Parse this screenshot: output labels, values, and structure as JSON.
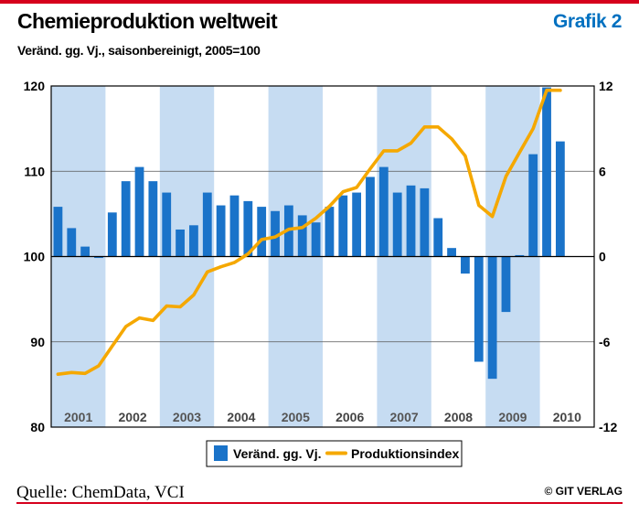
{
  "header": {
    "title": "Chemieproduktion weltweit",
    "subtitle": "Veränd. gg. Vj., saisonbereinigt, 2005=100",
    "grafik_label": "Grafik 2"
  },
  "footer": {
    "source": "Quelle: ChemData, VCI",
    "copyright": "© GIT VERLAG"
  },
  "colors": {
    "bar": "#1a73c9",
    "line": "#f5a800",
    "band": "#c6dcf2",
    "title_accent": "#0070c0",
    "border": "#d6001c"
  },
  "chart_data": {
    "type": "bar+line",
    "years": [
      "2001",
      "2002",
      "2003",
      "2004",
      "2005",
      "2006",
      "2007",
      "2008",
      "2009",
      "2010"
    ],
    "quarters": [
      "2001Q1",
      "2001Q2",
      "2001Q3",
      "2001Q4",
      "2002Q1",
      "2002Q2",
      "2002Q3",
      "2002Q4",
      "2003Q1",
      "2003Q2",
      "2003Q3",
      "2003Q4",
      "2004Q1",
      "2004Q2",
      "2004Q3",
      "2004Q4",
      "2005Q1",
      "2005Q2",
      "2005Q3",
      "2005Q4",
      "2006Q1",
      "2006Q2",
      "2006Q3",
      "2006Q4",
      "2007Q1",
      "2007Q2",
      "2007Q3",
      "2007Q4",
      "2008Q1",
      "2008Q2",
      "2008Q3",
      "2008Q4",
      "2009Q1",
      "2009Q2",
      "2009Q3",
      "2009Q4",
      "2010Q1",
      "2010Q2"
    ],
    "series": [
      {
        "name": "Veränd. gg. Vj.",
        "axis": "right",
        "kind": "bar",
        "values": [
          3.5,
          2.0,
          0.7,
          -0.1,
          3.1,
          5.3,
          6.3,
          5.3,
          4.5,
          1.9,
          2.2,
          4.5,
          3.6,
          4.3,
          3.9,
          3.5,
          3.2,
          3.6,
          2.9,
          2.4,
          3.5,
          4.3,
          4.5,
          5.6,
          6.3,
          4.5,
          5.0,
          4.8,
          2.7,
          0.6,
          -1.2,
          -7.4,
          -8.6,
          -3.9,
          0.1,
          7.2,
          11.9,
          8.1
        ]
      },
      {
        "name": "Produktionsindex",
        "axis": "left",
        "kind": "line",
        "values": [
          86.2,
          86.4,
          86.3,
          87.2,
          89.5,
          91.8,
          92.8,
          92.5,
          94.2,
          94.1,
          95.5,
          98.2,
          98.8,
          99.3,
          100.3,
          102.0,
          102.3,
          103.2,
          103.4,
          104.5,
          105.9,
          107.6,
          108.1,
          110.3,
          112.4,
          112.4,
          113.3,
          115.2,
          115.2,
          113.8,
          111.8,
          106.0,
          104.7,
          109.4,
          112.2,
          115.0,
          119.5,
          119.5
        ]
      }
    ],
    "left_axis": {
      "ylim": [
        80,
        120
      ],
      "ticks": [
        80,
        90,
        100,
        110,
        120
      ]
    },
    "right_axis": {
      "ylim": [
        -12,
        12
      ],
      "ticks": [
        -12,
        -6,
        0,
        6,
        12
      ]
    },
    "legend": {
      "placement": "bottom-center",
      "bar_label": "Veränd. gg. Vj.",
      "line_label": "Produktionsindex"
    }
  }
}
